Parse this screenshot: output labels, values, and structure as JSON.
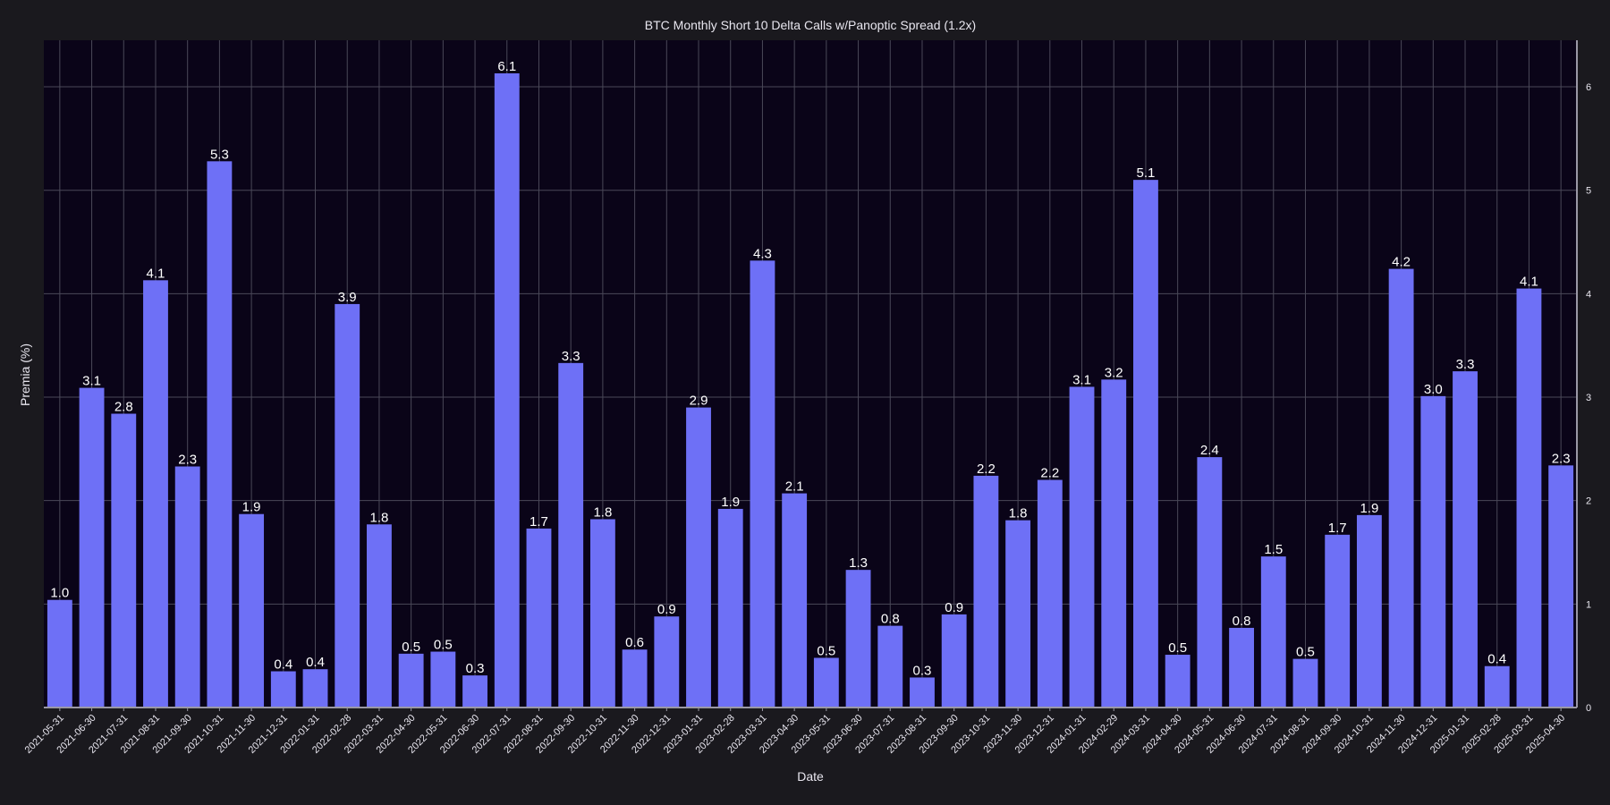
{
  "chart_data": {
    "type": "bar",
    "title": "BTC Monthly Short 10 Delta Calls w/Panoptic Spread (1.2x)",
    "xlabel": "Date",
    "ylabel": "Premia (%)",
    "ylim": [
      0,
      6.45
    ],
    "yticks": [
      "0",
      "1",
      "2",
      "3",
      "4",
      "5",
      "6"
    ],
    "grid": true,
    "y_axis_side": "right",
    "colors": {
      "bar": "#6e70f6",
      "plot_bg": "#0a0418",
      "page_bg": "#1a191e",
      "grid": "#4a4858",
      "text": "#e8e6ef"
    },
    "categories": [
      "2021-05-31",
      "2021-06-30",
      "2021-07-31",
      "2021-08-31",
      "2021-09-30",
      "2021-10-31",
      "2021-11-30",
      "2021-12-31",
      "2022-01-31",
      "2022-02-28",
      "2022-03-31",
      "2022-04-30",
      "2022-05-31",
      "2022-06-30",
      "2022-07-31",
      "2022-08-31",
      "2022-09-30",
      "2022-10-31",
      "2022-11-30",
      "2022-12-31",
      "2023-01-31",
      "2023-02-28",
      "2023-03-31",
      "2023-04-30",
      "2023-05-31",
      "2023-06-30",
      "2023-07-31",
      "2023-08-31",
      "2023-09-30",
      "2023-10-31",
      "2023-11-30",
      "2023-12-31",
      "2024-01-31",
      "2024-02-29",
      "2024-03-31",
      "2024-04-30",
      "2024-05-31",
      "2024-06-30",
      "2024-07-31",
      "2024-08-31",
      "2024-09-30",
      "2024-10-31",
      "2024-11-30",
      "2024-12-31",
      "2025-01-31",
      "2025-02-28",
      "2025-03-31",
      "2025-04-30"
    ],
    "values": [
      1.04,
      3.09,
      2.84,
      4.13,
      2.33,
      5.28,
      1.87,
      0.35,
      0.37,
      3.9,
      1.77,
      0.52,
      0.54,
      0.31,
      6.13,
      1.73,
      3.33,
      1.82,
      0.56,
      0.88,
      2.9,
      1.92,
      4.32,
      2.07,
      0.48,
      1.33,
      0.79,
      0.29,
      0.9,
      2.24,
      1.81,
      2.2,
      3.1,
      3.17,
      5.1,
      0.51,
      2.42,
      0.77,
      1.46,
      0.47,
      1.67,
      1.86,
      4.24,
      3.01,
      3.25,
      0.4,
      4.05,
      2.34
    ],
    "data_labels": [
      "1.0",
      "3.1",
      "2.8",
      "4.1",
      "2.3",
      "5.3",
      "1.9",
      "0.4",
      "0.4",
      "3.9",
      "1.8",
      "0.5",
      "0.5",
      "0.3",
      "6.1",
      "1.7",
      "3.3",
      "1.8",
      "0.6",
      "0.9",
      "2.9",
      "1.9",
      "4.3",
      "2.1",
      "0.5",
      "1.3",
      "0.8",
      "0.3",
      "0.9",
      "2.2",
      "1.8",
      "2.2",
      "3.1",
      "3.2",
      "5.1",
      "0.5",
      "2.4",
      "0.8",
      "1.5",
      "0.5",
      "1.7",
      "1.9",
      "4.2",
      "3.0",
      "3.3",
      "0.4",
      "4.1",
      "2.3"
    ]
  }
}
